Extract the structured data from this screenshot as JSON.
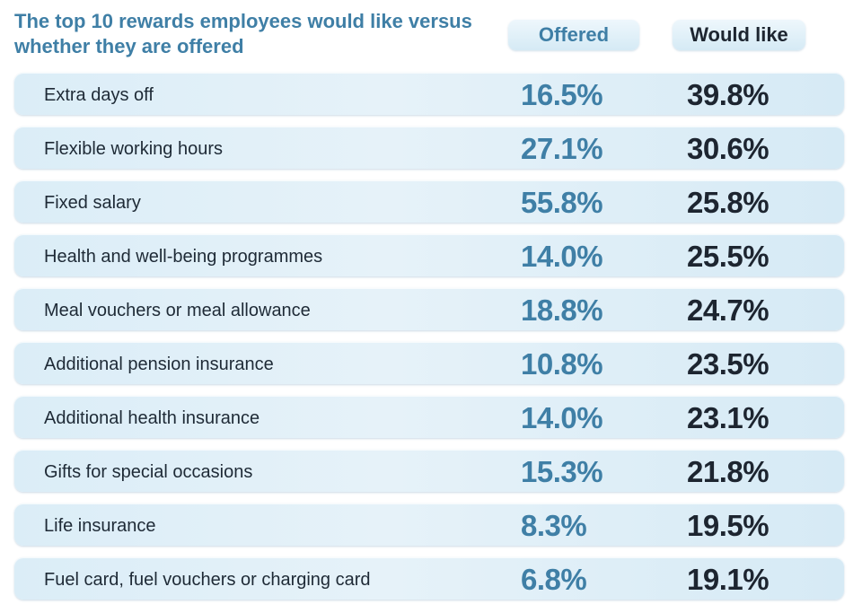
{
  "chart_data": {
    "type": "table",
    "title": "The top 10 rewards employees would like versus whether they are offered",
    "columns": [
      "Offered",
      "Would like"
    ],
    "rows": [
      {
        "label": "Extra days off",
        "offered": "16.5%",
        "would_like": "39.8%"
      },
      {
        "label": "Flexible working hours",
        "offered": "27.1%",
        "would_like": "30.6%"
      },
      {
        "label": "Fixed salary",
        "offered": "55.8%",
        "would_like": "25.8%"
      },
      {
        "label": "Health and well-being programmes",
        "offered": "14.0%",
        "would_like": "25.5%"
      },
      {
        "label": "Meal vouchers or meal allowance",
        "offered": "18.8%",
        "would_like": "24.7%"
      },
      {
        "label": "Additional pension insurance",
        "offered": "10.8%",
        "would_like": "23.5%"
      },
      {
        "label": "Additional health insurance",
        "offered": "14.0%",
        "would_like": "23.1%"
      },
      {
        "label": "Gifts for special occasions",
        "offered": "15.3%",
        "would_like": "21.8%"
      },
      {
        "label": "Life insurance",
        "offered": "8.3%",
        "would_like": "19.5%"
      },
      {
        "label": "Fuel card, fuel vouchers or charging card",
        "offered": "6.8%",
        "would_like": "19.1%"
      }
    ]
  },
  "colors": {
    "accent_blue": "#3f7fa6",
    "dark_text": "#1d2530",
    "row_bg": "#dbedf7"
  }
}
